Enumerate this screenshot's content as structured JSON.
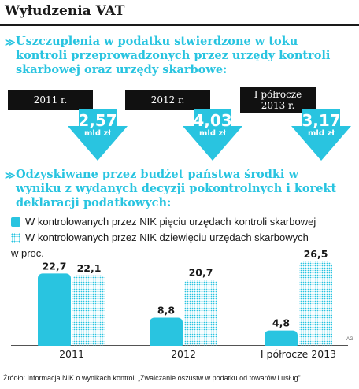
{
  "title": "Wyłudzenia VAT",
  "section1": {
    "heading": "Uszczuplenia  w  podatku stwierdzone w  toku kontroli przeprowadzonych przez urzędy kontroli skarbowej oraz urzędy skarbowe:",
    "items": [
      {
        "label": "2011 r.",
        "value": "2,57",
        "unit": "mld zł"
      },
      {
        "label": "2012 r.",
        "value": "4,03",
        "unit": "mld zł"
      },
      {
        "label": "I półrocze 2013 r.",
        "value": "3,17",
        "unit": "mld zł"
      }
    ]
  },
  "section2": {
    "heading": "Odzyskiwane przez budżet państwa środki w wyniku z wydanych decyzji pokontrolnych i korekt deklaracji podatkowych:"
  },
  "colors": {
    "accent": "#29c4e0",
    "dark": "#111111"
  },
  "chart_data": {
    "type": "bar",
    "unit_label": "w proc.",
    "categories": [
      "2011",
      "2012",
      "I półrocze 2013"
    ],
    "series": [
      {
        "name": "W kontrolowanych przez NIK pięciu urzędach kontroli skarbowej",
        "values": [
          22.7,
          8.8,
          4.8
        ],
        "labels": [
          "22,7",
          "8,8",
          "4,8"
        ],
        "style": "solid"
      },
      {
        "name": "W kontrolowanych przez NIK dziewięciu urzędach skarbowych",
        "values": [
          22.1,
          20.7,
          26.5
        ],
        "labels": [
          "22,1",
          "20,7",
          "26,5"
        ],
        "style": "dotted"
      }
    ],
    "ylim": [
      0,
      27
    ]
  },
  "footer": "Źródło: Informacja NIK o wynikach kontroli „Zwalczanie oszustw w podatku od towarów i usług”",
  "credit": "AG"
}
